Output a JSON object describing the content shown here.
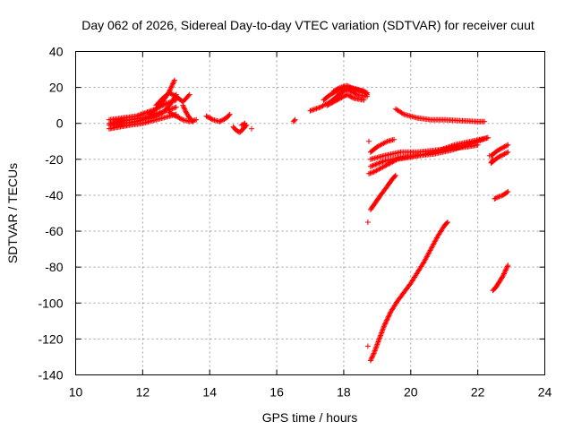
{
  "chart_data": {
    "type": "scatter",
    "title": "Day 062 of 2026, Sidereal Day-to-day VTEC variation (SDTVAR) for receiver cuut",
    "xlabel": "GPS time / hours",
    "ylabel": "SDTVAR / TECUs",
    "xlim": [
      10,
      24
    ],
    "ylim": [
      -140,
      40
    ],
    "x_ticks": [
      10,
      12,
      14,
      16,
      18,
      20,
      22,
      24
    ],
    "y_ticks": [
      -140,
      -120,
      -100,
      -80,
      -60,
      -40,
      -20,
      0,
      20,
      40
    ],
    "grid": true,
    "marker": "plus",
    "marker_color": "#ff0000",
    "series": [
      {
        "segments": [
          [
            [
              11.0,
              -3
            ],
            [
              11.3,
              -2
            ],
            [
              11.6,
              -1
            ],
            [
              12.0,
              0
            ],
            [
              12.4,
              2
            ],
            [
              12.8,
              4
            ],
            [
              13.0,
              5
            ]
          ],
          [
            [
              11.0,
              0
            ],
            [
              11.3,
              1
            ],
            [
              11.6,
              2
            ],
            [
              12.0,
              3
            ],
            [
              12.4,
              5
            ],
            [
              12.7,
              7
            ],
            [
              13.0,
              9
            ]
          ],
          [
            [
              11.0,
              2
            ],
            [
              11.4,
              3
            ],
            [
              11.8,
              4
            ],
            [
              12.1,
              6
            ],
            [
              12.4,
              8
            ],
            [
              12.7,
              11
            ],
            [
              13.0,
              13
            ]
          ],
          [
            [
              11.0,
              -1
            ],
            [
              11.4,
              0
            ],
            [
              11.8,
              1
            ],
            [
              12.2,
              3
            ],
            [
              12.6,
              6
            ],
            [
              12.8,
              10
            ],
            [
              13.0,
              16
            ]
          ],
          [
            [
              12.2,
              5
            ],
            [
              12.4,
              8
            ],
            [
              12.6,
              12
            ],
            [
              12.8,
              18
            ],
            [
              12.95,
              24
            ]
          ],
          [
            [
              12.4,
              10
            ],
            [
              12.6,
              14
            ],
            [
              12.8,
              17
            ],
            [
              13.0,
              15
            ],
            [
              13.2,
              12
            ],
            [
              13.4,
              16
            ]
          ],
          [
            [
              12.8,
              6
            ],
            [
              13.0,
              4
            ],
            [
              13.2,
              2
            ],
            [
              13.4,
              1
            ],
            [
              13.6,
              2
            ]
          ],
          [
            [
              13.2,
              10
            ],
            [
              13.3,
              6
            ],
            [
              13.4,
              3
            ],
            [
              13.5,
              1
            ]
          ],
          [
            [
              13.9,
              4
            ],
            [
              14.1,
              2
            ],
            [
              14.3,
              1
            ],
            [
              14.5,
              3
            ],
            [
              14.6,
              5
            ]
          ],
          [
            [
              14.7,
              -2
            ],
            [
              14.8,
              -4
            ],
            [
              14.9,
              -5
            ],
            [
              15.0,
              -3
            ],
            [
              15.1,
              -1
            ]
          ],
          [
            [
              14.95,
              -1
            ],
            [
              15.05,
              0
            ]
          ]
        ]
      },
      {
        "segments": [
          [
            [
              15.25,
              -3
            ]
          ],
          [
            [
              16.5,
              1
            ],
            [
              16.55,
              2
            ]
          ],
          [
            [
              17.0,
              7
            ],
            [
              17.3,
              9
            ],
            [
              17.6,
              12
            ],
            [
              17.8,
              15
            ],
            [
              18.0,
              18
            ],
            [
              18.2,
              20
            ],
            [
              18.4,
              19
            ],
            [
              18.7,
              17
            ]
          ],
          [
            [
              17.4,
              13
            ],
            [
              17.6,
              16
            ],
            [
              17.8,
              18
            ],
            [
              18.0,
              20
            ],
            [
              18.2,
              18
            ],
            [
              18.4,
              16
            ],
            [
              18.7,
              15
            ]
          ],
          [
            [
              17.5,
              10
            ],
            [
              17.7,
              12
            ],
            [
              17.9,
              14
            ],
            [
              18.1,
              16
            ],
            [
              18.3,
              14
            ],
            [
              18.6,
              13
            ]
          ],
          [
            [
              17.7,
              18
            ],
            [
              17.9,
              20
            ],
            [
              18.1,
              21
            ],
            [
              18.3,
              19
            ],
            [
              18.6,
              18
            ],
            [
              18.7,
              16
            ]
          ]
        ]
      },
      {
        "segments": [
          [
            [
              19.55,
              8
            ],
            [
              19.8,
              5
            ],
            [
              20.2,
              3
            ],
            [
              20.6,
              2
            ],
            [
              21.0,
              2
            ],
            [
              21.5,
              1.5
            ],
            [
              22.0,
              1
            ],
            [
              22.2,
              1
            ]
          ],
          [
            [
              18.75,
              -10
            ]
          ],
          [
            [
              18.8,
              -16
            ],
            [
              19.0,
              -13
            ],
            [
              19.3,
              -10
            ],
            [
              19.5,
              -9
            ]
          ],
          [
            [
              18.8,
              -20
            ],
            [
              19.2,
              -18
            ],
            [
              19.7,
              -16
            ],
            [
              20.2,
              -16
            ],
            [
              20.7,
              -15
            ],
            [
              21.2,
              -14
            ],
            [
              21.7,
              -13
            ],
            [
              22.0,
              -12
            ]
          ],
          [
            [
              18.8,
              -24
            ],
            [
              19.2,
              -21
            ],
            [
              19.7,
              -19
            ],
            [
              20.2,
              -18
            ],
            [
              20.7,
              -17
            ],
            [
              21.2,
              -15
            ],
            [
              21.7,
              -12
            ],
            [
              22.0,
              -10
            ],
            [
              22.3,
              -8
            ]
          ],
          [
            [
              18.75,
              -28
            ],
            [
              18.9,
              -27
            ],
            [
              19.2,
              -24
            ],
            [
              19.6,
              -20
            ],
            [
              20.2,
              -18
            ],
            [
              20.7,
              -16
            ],
            [
              21.3,
              -12
            ],
            [
              21.8,
              -10
            ],
            [
              22.3,
              -8
            ]
          ],
          [
            [
              18.8,
              -48
            ],
            [
              18.95,
              -44
            ],
            [
              19.1,
              -40
            ],
            [
              19.3,
              -35
            ],
            [
              19.45,
              -31
            ],
            [
              19.55,
              -29
            ]
          ],
          [
            [
              18.72,
              -55
            ]
          ],
          [
            [
              18.72,
              -124
            ]
          ],
          [
            [
              18.8,
              -132
            ],
            [
              18.9,
              -128
            ],
            [
              19.0,
              -123
            ],
            [
              19.2,
              -113
            ],
            [
              19.4,
              -105
            ],
            [
              19.6,
              -99
            ],
            [
              19.8,
              -94
            ],
            [
              20.0,
              -89
            ],
            [
              20.2,
              -83
            ],
            [
              20.4,
              -77
            ],
            [
              20.6,
              -70
            ],
            [
              20.8,
              -63
            ],
            [
              21.0,
              -57
            ],
            [
              21.1,
              -55
            ]
          ]
        ]
      },
      {
        "segments": [
          [
            [
              22.35,
              -18
            ]
          ],
          [
            [
              22.4,
              -22
            ],
            [
              22.45,
              -20
            ]
          ],
          [
            [
              22.4,
              -22
            ],
            [
              22.6,
              -19
            ],
            [
              22.8,
              -17
            ],
            [
              22.9,
              -16
            ]
          ],
          [
            [
              22.4,
              -18
            ],
            [
              22.6,
              -15
            ],
            [
              22.8,
              -13
            ],
            [
              22.9,
              -12
            ]
          ],
          [
            [
              22.5,
              -42
            ],
            [
              22.6,
              -41
            ],
            [
              22.75,
              -40
            ],
            [
              22.9,
              -38
            ]
          ],
          [
            [
              22.45,
              -93
            ],
            [
              22.55,
              -91
            ],
            [
              22.65,
              -88
            ],
            [
              22.75,
              -85
            ],
            [
              22.85,
              -81
            ],
            [
              22.9,
              -79
            ]
          ]
        ]
      }
    ]
  }
}
